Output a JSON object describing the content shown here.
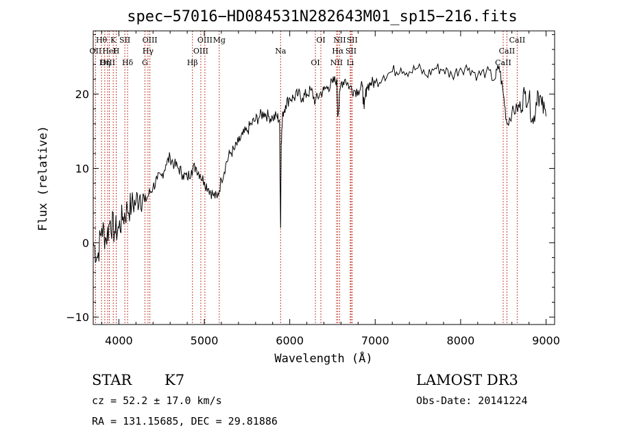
{
  "chart_data": {
    "type": "line",
    "title": "spec−57016−HD084531N282643M01_sp15−216.fits",
    "xlabel": "Wavelength (Å)",
    "ylabel": "Flux (relative)",
    "xlim": [
      3700,
      9100
    ],
    "ylim": [
      -11,
      28.5
    ],
    "xticks": [
      4000,
      5000,
      6000,
      7000,
      8000,
      9000
    ],
    "xtick_labels": [
      "4000",
      "5000",
      "6000",
      "7000",
      "8000",
      "9000"
    ],
    "yticks": [
      -10,
      0,
      10,
      20
    ],
    "ytick_labels": [
      "−10",
      "0",
      "10",
      "20"
    ],
    "grid": false,
    "series": [
      {
        "name": "flux",
        "x": [
          3700,
          3750,
          3800,
          3850,
          3900,
          3950,
          4000,
          4050,
          4100,
          4150,
          4200,
          4250,
          4300,
          4350,
          4400,
          4450,
          4500,
          4550,
          4600,
          4650,
          4700,
          4750,
          4800,
          4850,
          4900,
          4950,
          5000,
          5050,
          5100,
          5150,
          5200,
          5250,
          5300,
          5350,
          5400,
          5450,
          5500,
          5550,
          5600,
          5650,
          5700,
          5750,
          5800,
          5850,
          5880,
          5893,
          5900,
          5920,
          5950,
          6000,
          6050,
          6100,
          6150,
          6200,
          6250,
          6300,
          6350,
          6400,
          6450,
          6500,
          6550,
          6563,
          6600,
          6650,
          6700,
          6750,
          6800,
          6850,
          6870,
          6900,
          6950,
          7000,
          7100,
          7200,
          7300,
          7400,
          7500,
          7600,
          7700,
          7800,
          7900,
          8000,
          8100,
          8200,
          8300,
          8400,
          8450,
          8500,
          8542,
          8600,
          8662,
          8700,
          8750,
          8800,
          8850,
          8900,
          8950,
          9000
        ],
        "values": [
          0,
          -2,
          2,
          0.5,
          3,
          1.5,
          2,
          3.5,
          4.5,
          5,
          5.5,
          6.5,
          5.5,
          6.5,
          7.5,
          8.5,
          9,
          10.5,
          11.5,
          10.5,
          10,
          9.2,
          8.7,
          9.8,
          10.2,
          9.2,
          8.2,
          7.3,
          6.5,
          6.0,
          8.5,
          10.5,
          12,
          12.5,
          13.5,
          14.5,
          15,
          16,
          16.5,
          17,
          17.5,
          17,
          16.8,
          17,
          16.5,
          2,
          13.5,
          17.5,
          18.5,
          19.5,
          19.5,
          20,
          19.5,
          20,
          20.5,
          19,
          20,
          20.5,
          21,
          21.5,
          22,
          17,
          21.5,
          22,
          21,
          20.5,
          20.5,
          21,
          18,
          21,
          21.5,
          21.5,
          22.5,
          23,
          23.5,
          23,
          23.5,
          22.5,
          23.5,
          23.3,
          22.5,
          23.5,
          23.5,
          22.5,
          23,
          22,
          23.8,
          20,
          16,
          17.5,
          18,
          18.5,
          20,
          19.5,
          16,
          20.5,
          18.5,
          17
        ]
      }
    ],
    "emission_lines": [
      {
        "name": "Hθ",
        "wave": 3797
      },
      {
        "name": "OII",
        "wave": 3727
      },
      {
        "name": "OIII",
        "wave": 3869
      },
      {
        "name": "K",
        "wave": 3934
      },
      {
        "name": "HeI",
        "wave": 3889
      },
      {
        "name": "Hη",
        "wave": 3835
      },
      {
        "name": "SII",
        "wave": 4070
      },
      {
        "name": "H",
        "wave": 3969
      },
      {
        "name": "Hδ",
        "wave": 4102
      },
      {
        "name": "OIII",
        "wave": 4363
      },
      {
        "name": "Hγ",
        "wave": 4341
      },
      {
        "name": "G",
        "wave": 4305
      },
      {
        "name": "OIII",
        "wave": 5007
      },
      {
        "name": "OIII",
        "wave": 4959
      },
      {
        "name": "Hβ",
        "wave": 4861
      },
      {
        "name": "Mg",
        "wave": 5175
      },
      {
        "name": "Na",
        "wave": 5893
      },
      {
        "name": "OI",
        "wave": 6300
      },
      {
        "name": "OI",
        "wave": 6364
      },
      {
        "name": "Hα",
        "wave": 6563
      },
      {
        "name": "NII",
        "wave": 6548
      },
      {
        "name": "NII",
        "wave": 6584
      },
      {
        "name": "SII",
        "wave": 6717
      },
      {
        "name": "Li",
        "wave": 6708
      },
      {
        "name": "SII",
        "wave": 6731
      },
      {
        "name": "CaII",
        "wave": 8542
      },
      {
        "name": "CaII",
        "wave": 8498
      },
      {
        "name": "CaII",
        "wave": 8662
      }
    ]
  },
  "info": {
    "class_label": "STAR",
    "subclass": "K7",
    "survey": "LAMOST DR3",
    "cz": "cz = 52.2 ± 17.0 km/s",
    "obs_date": "Obs-Date: 20141224",
    "radec": "RA = 131.15685, DEC =  29.81886"
  },
  "colors": {
    "line_marker": "#c0392b",
    "spectrum": "#000000"
  }
}
